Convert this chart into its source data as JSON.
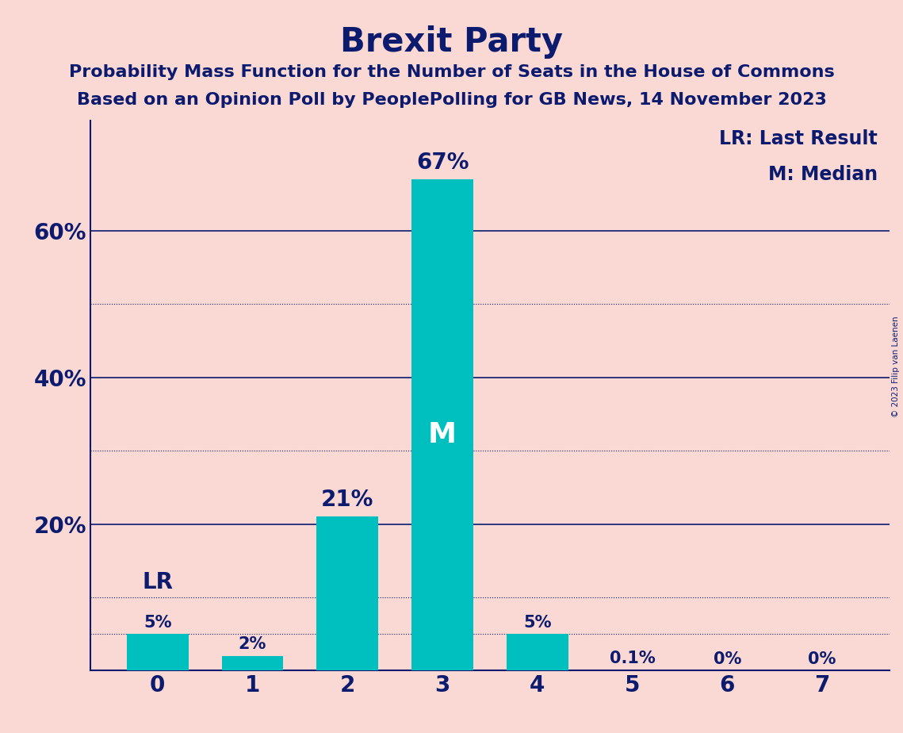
{
  "title": "Brexit Party",
  "subtitle1": "Probability Mass Function for the Number of Seats in the House of Commons",
  "subtitle2": "Based on an Opinion Poll by PeoplePolling for GB News, 14 November 2023",
  "categories": [
    0,
    1,
    2,
    3,
    4,
    5,
    6,
    7
  ],
  "values": [
    5,
    2,
    21,
    67,
    5,
    0.1,
    0,
    0
  ],
  "bar_labels": [
    "5%",
    "2%",
    "21%",
    "67%",
    "5%",
    "0.1%",
    "0%",
    "0%"
  ],
  "bar_color": "#00BFBF",
  "background_color": "#FAD9D5",
  "title_color": "#0D1B6E",
  "axis_color": "#0D1B6E",
  "grid_color": "#0D1B6E",
  "bar_label_color_outside": "#0D1B6E",
  "bar_label_color_inside": "#FFFFFF",
  "median_bar_index": 3,
  "lr_bar_index": 0,
  "ylim": [
    0,
    75
  ],
  "solid_gridlines": [
    20,
    40,
    60
  ],
  "dotted_gridlines": [
    10,
    30,
    50,
    5
  ],
  "legend_text1": "LR: Last Result",
  "legend_text2": "M: Median",
  "copyright_text": "© 2023 Filip van Laenen",
  "title_fontsize": 30,
  "subtitle_fontsize": 16,
  "bar_label_fontsize_large": 20,
  "bar_label_fontsize_small": 15,
  "ytick_fontsize": 20,
  "xtick_fontsize": 20,
  "legend_fontsize": 16
}
